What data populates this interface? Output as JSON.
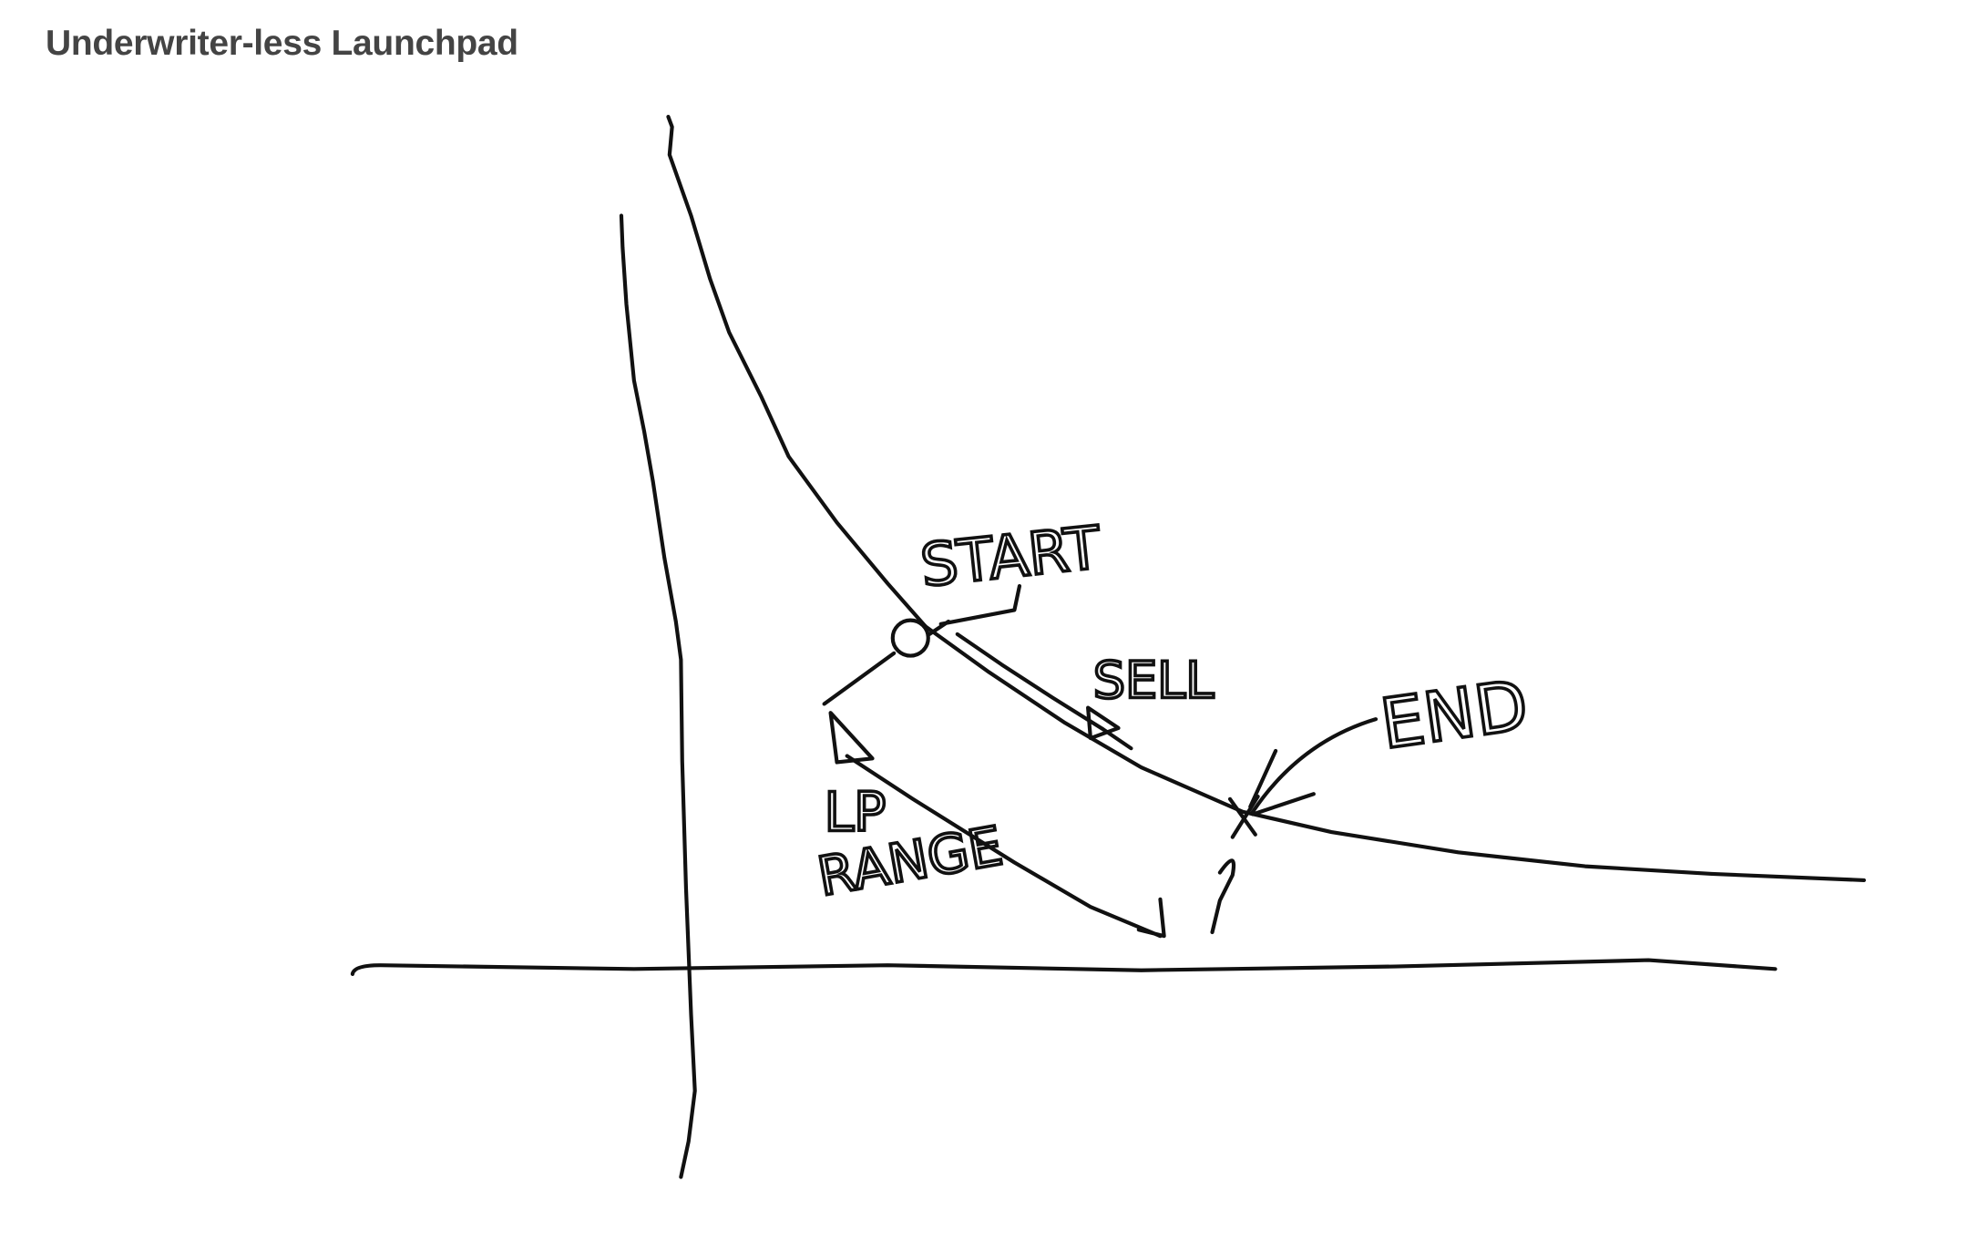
{
  "header": {
    "title": "Underwriter-less Launchpad"
  },
  "sketch": {
    "labels": {
      "start": "START",
      "sell": "SELL",
      "end": "END",
      "lp": "LP",
      "range": "RANGE"
    }
  }
}
